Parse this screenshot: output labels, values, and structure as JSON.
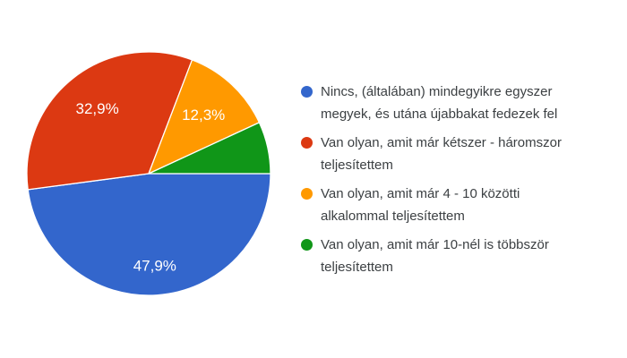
{
  "page": {
    "background": "#ffffff",
    "legend_text_color": "#3c4043"
  },
  "chart_data": {
    "type": "pie",
    "title": "",
    "legend_position": "right",
    "start_angle": "3-oclock",
    "direction": "clockwise",
    "slice_label_color": "#ffffff",
    "slices": [
      {
        "legend": "Nincs, (általában) mindegyikre egyszer megyek, és utána újabbakat fedezek fel",
        "value_pct": 47.9,
        "slice_label": "47,9%",
        "color": "#3366cc"
      },
      {
        "legend": "Van olyan, amit már kétszer - háromszor teljesítettem",
        "value_pct": 32.9,
        "slice_label": "32,9%",
        "color": "#dc3912"
      },
      {
        "legend": "Van olyan, amit már 4 - 10 közötti alkalommal teljesítettem",
        "value_pct": 12.3,
        "slice_label": "12,3%",
        "color": "#ff9900"
      },
      {
        "legend": "Van olyan, amit már 10-nél is többször teljesítettem",
        "value_pct": 6.9,
        "slice_label": "",
        "color": "#109618"
      }
    ]
  }
}
